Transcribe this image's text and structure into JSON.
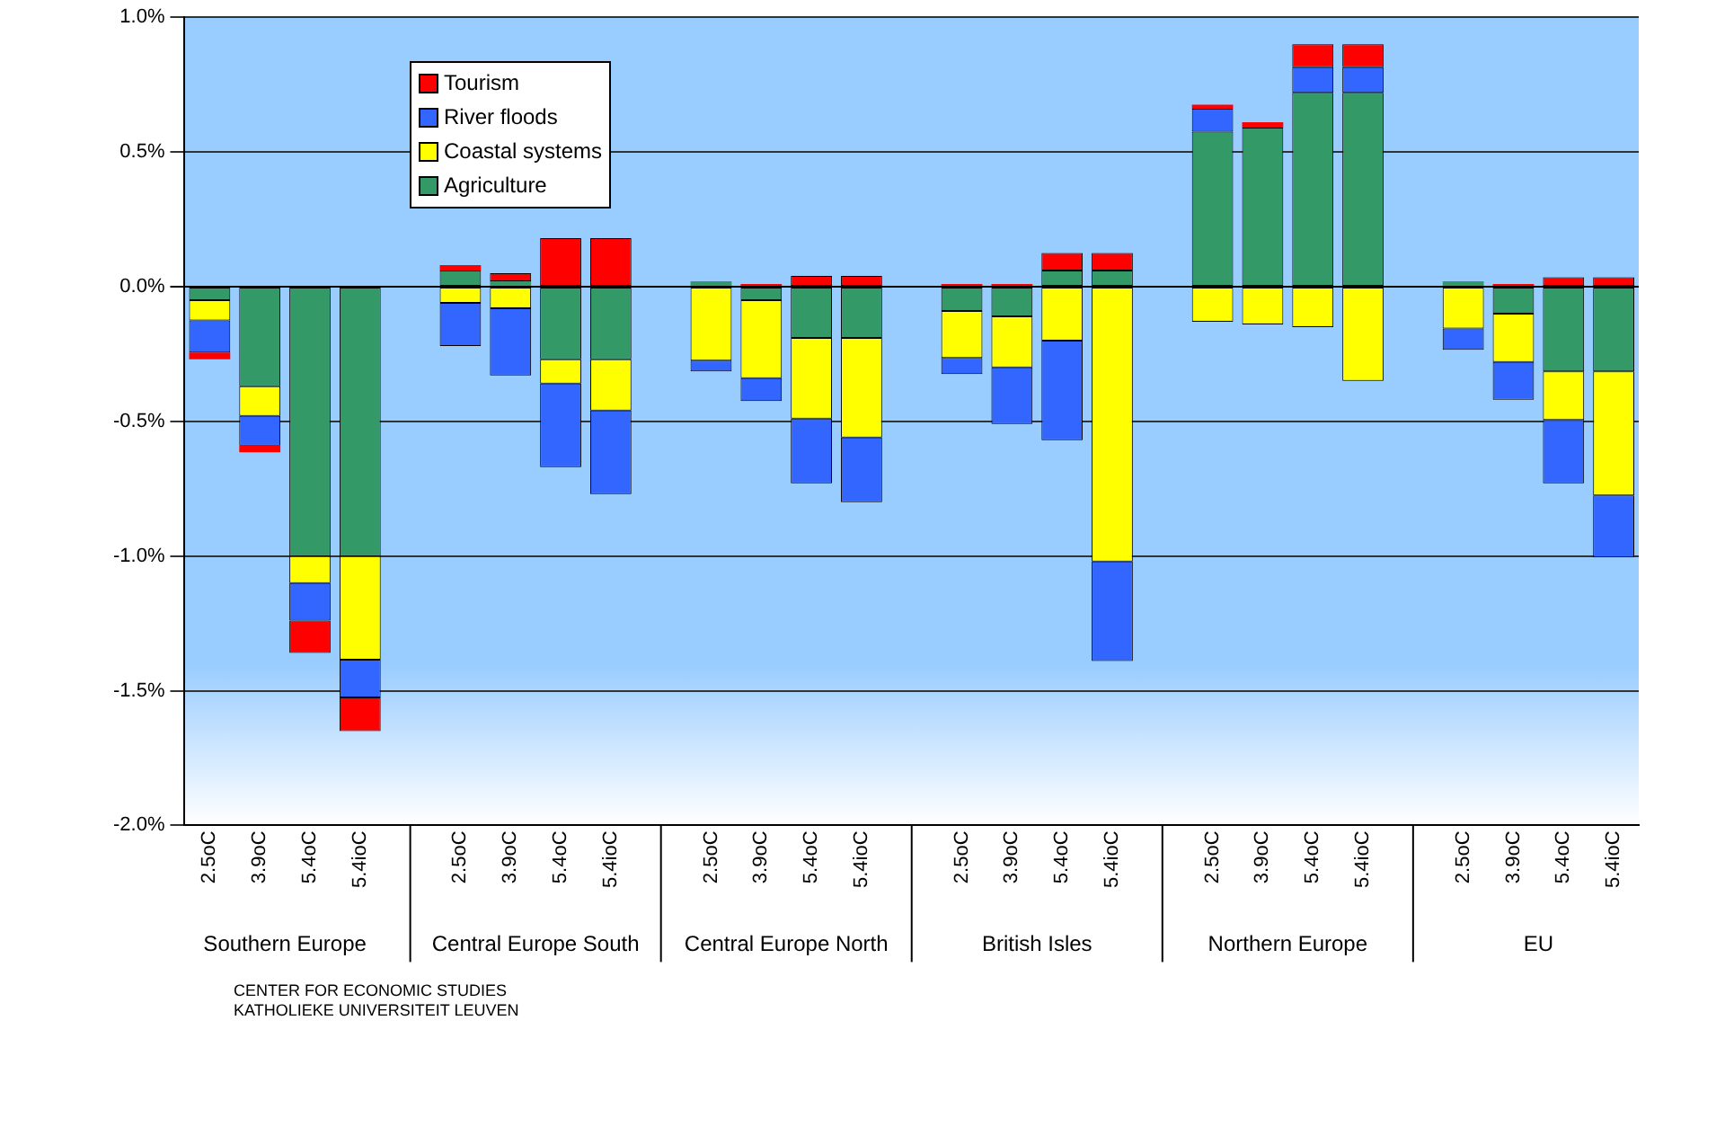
{
  "chart_data": {
    "type": "bar",
    "stacked": true,
    "ylabel": null,
    "categories": [
      "2.5oC",
      "3.9oC",
      "5.4oC",
      "5.4ioC",
      null,
      "2.5oC",
      "3.9oC",
      "5.4oC",
      "5.4ioC",
      null,
      "2.5oC",
      "3.9oC",
      "5.4oC",
      "5.4ioC",
      null,
      "2.5oC",
      "3.9oC",
      "5.4oC",
      "5.4ioC",
      null,
      "2.5oC",
      "3.9oC",
      "5.4oC",
      "5.4ioC",
      null,
      "2.5oC",
      "3.9oC",
      "5.4oC",
      "5.4ioC"
    ],
    "series": [
      {
        "name": "Agriculture",
        "color": "#339966",
        "values": [
          -0.05,
          -0.37,
          -1.0,
          -1.0,
          null,
          0.06,
          0.02,
          -0.27,
          -0.27,
          null,
          0.02,
          -0.05,
          -0.19,
          -0.19,
          null,
          -0.09,
          -0.11,
          0.06,
          0.06,
          null,
          0.575,
          0.59,
          0.72,
          0.72,
          null,
          0.02,
          -0.1,
          -0.315,
          -0.315
        ]
      },
      {
        "name": "Coastal systems",
        "color": "#ffff00",
        "values": [
          -0.075,
          -0.11,
          -0.1,
          -0.385,
          null,
          -0.06,
          -0.08,
          -0.09,
          -0.19,
          null,
          -0.275,
          -0.29,
          -0.3,
          -0.37,
          null,
          -0.175,
          -0.19,
          -0.2,
          -1.02,
          null,
          -0.13,
          -0.14,
          -0.15,
          -0.35,
          null,
          -0.155,
          -0.18,
          -0.18,
          -0.46
        ]
      },
      {
        "name": "River floods",
        "color": "#3366ff",
        "values": [
          -0.12,
          -0.11,
          -0.14,
          -0.14,
          null,
          -0.16,
          -0.25,
          -0.31,
          -0.31,
          null,
          -0.04,
          -0.085,
          -0.24,
          -0.24,
          null,
          -0.06,
          -0.21,
          -0.37,
          -0.37,
          null,
          0.085,
          null,
          0.095,
          0.095,
          null,
          -0.08,
          -0.14,
          -0.235,
          -0.23
        ]
      },
      {
        "name": "Tourism",
        "color": "#ff0000",
        "values": [
          -0.025,
          -0.025,
          -0.12,
          -0.125,
          null,
          0.02,
          0.03,
          0.18,
          0.18,
          null,
          null,
          0.01,
          0.04,
          0.04,
          null,
          0.01,
          0.01,
          0.065,
          0.065,
          null,
          0.015,
          0.02,
          0.085,
          0.085,
          null,
          null,
          0.01,
          0.035,
          0.035
        ]
      }
    ],
    "ylim": [
      -2.0,
      1.0
    ],
    "yticks": [
      {
        "value": -2.0,
        "label": "-2.0%"
      },
      {
        "value": -1.5,
        "label": "-1.5%"
      },
      {
        "value": -1.0,
        "label": "-1.0%"
      },
      {
        "value": -0.5,
        "label": "-0.5%"
      },
      {
        "value": 0,
        "label": "0.0%"
      },
      {
        "value": 0.5,
        "label": "0.5%"
      },
      {
        "value": 1.0,
        "label": "1.0%"
      }
    ],
    "grid": "y",
    "legend": "top left",
    "annotations": [
      "Southern Europe",
      "Central Europe South",
      "Central Europe North",
      "British Isles",
      "Northern Europe",
      "EU",
      "CENTER FOR ECONOMIC STUDIES",
      "KATHOLIEKE UNIVERSITEIT LEUVEN"
    ]
  }
}
